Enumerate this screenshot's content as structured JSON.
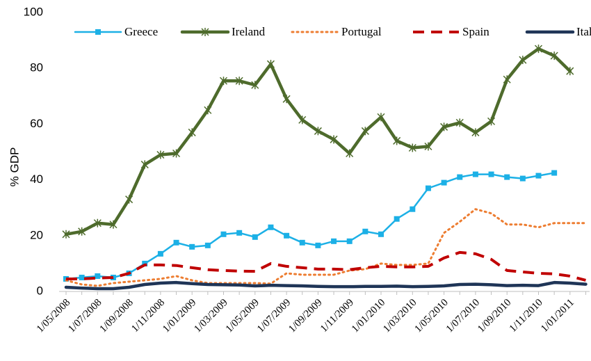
{
  "chart_data": {
    "type": "line",
    "y_label": "% GDP",
    "categories": [
      "1/05/2008",
      null,
      "1/07/2008",
      null,
      "1/09/2008",
      null,
      "1/11/2008",
      null,
      "1/01/2009",
      null,
      "1/03/2009",
      null,
      "1/05/2009",
      null,
      "1/07/2009",
      null,
      "1/09/2009",
      null,
      "1/11/2009",
      null,
      "1/01/2010",
      null,
      "1/03/2010",
      null,
      "1/05/2010",
      null,
      "1/07/2010",
      null,
      "1/09/2010",
      null,
      "1/11/2010",
      null,
      "1/01/2011",
      null
    ],
    "ylim": [
      0,
      100
    ],
    "yticks": [
      0,
      20,
      40,
      60,
      80,
      100
    ],
    "grid": false,
    "legend": "top",
    "series": [
      {
        "name": "Greece",
        "color": "#1cb0e6",
        "marker": "square",
        "style": "solid",
        "values": [
          4.5,
          5,
          5.5,
          5,
          6.5,
          10,
          13.5,
          17.5,
          16,
          16.5,
          20.5,
          21,
          19.5,
          23,
          20,
          17.5,
          16.5,
          18,
          18,
          21.5,
          20.5,
          26,
          29.5,
          37,
          39,
          41,
          42,
          42,
          41,
          40.5,
          41.5,
          42.5,
          null,
          null
        ]
      },
      {
        "name": "Ireland",
        "color": "#4e6b2c",
        "marker": "x",
        "style": "solid",
        "values": [
          20.5,
          21.5,
          24.5,
          24,
          33,
          45.5,
          49,
          49.5,
          57,
          65,
          75.5,
          75.5,
          74,
          81.5,
          69,
          61.5,
          57.5,
          54.5,
          49.5,
          57.5,
          62.5,
          54,
          51.5,
          52,
          59,
          60.5,
          57,
          61,
          76,
          83,
          87,
          84.5,
          79,
          null
        ]
      },
      {
        "name": "Portugal",
        "color": "#ed7d31",
        "marker": "none",
        "style": "dotted",
        "values": [
          4,
          2.5,
          2,
          3,
          3.5,
          4,
          4.5,
          5.5,
          4,
          3,
          3,
          3,
          3,
          2.8,
          6.5,
          6,
          6,
          6,
          7.5,
          8,
          10,
          9.5,
          9.5,
          10,
          21,
          25,
          29.5,
          28,
          24,
          24,
          23,
          24.5,
          24.5,
          24.5
        ]
      },
      {
        "name": "Spain",
        "color": "#c00000",
        "marker": "none",
        "style": "dashed",
        "values": [
          4.5,
          4.5,
          4.8,
          5,
          6.5,
          9.5,
          9.5,
          9.3,
          8.5,
          7.8,
          7.5,
          7.3,
          7.2,
          10,
          9,
          8.5,
          8,
          8,
          7.8,
          8.5,
          9,
          8.8,
          8.8,
          9,
          12,
          14,
          13.5,
          11.5,
          7.5,
          7,
          6.5,
          6.3,
          5.5,
          4
        ]
      },
      {
        "name": "Italy",
        "color": "#1f3557",
        "marker": "none",
        "style": "solid",
        "values": [
          1.5,
          1.2,
          1,
          1,
          1.5,
          2.5,
          3,
          3.2,
          2.8,
          2.5,
          2.4,
          2.3,
          2,
          2.2,
          2.1,
          2,
          1.8,
          1.7,
          1.7,
          1.8,
          1.8,
          1.9,
          1.7,
          1.8,
          2,
          2.5,
          2.6,
          2.4,
          2.1,
          2.2,
          2.1,
          3.2,
          3,
          2.6
        ]
      }
    ]
  }
}
